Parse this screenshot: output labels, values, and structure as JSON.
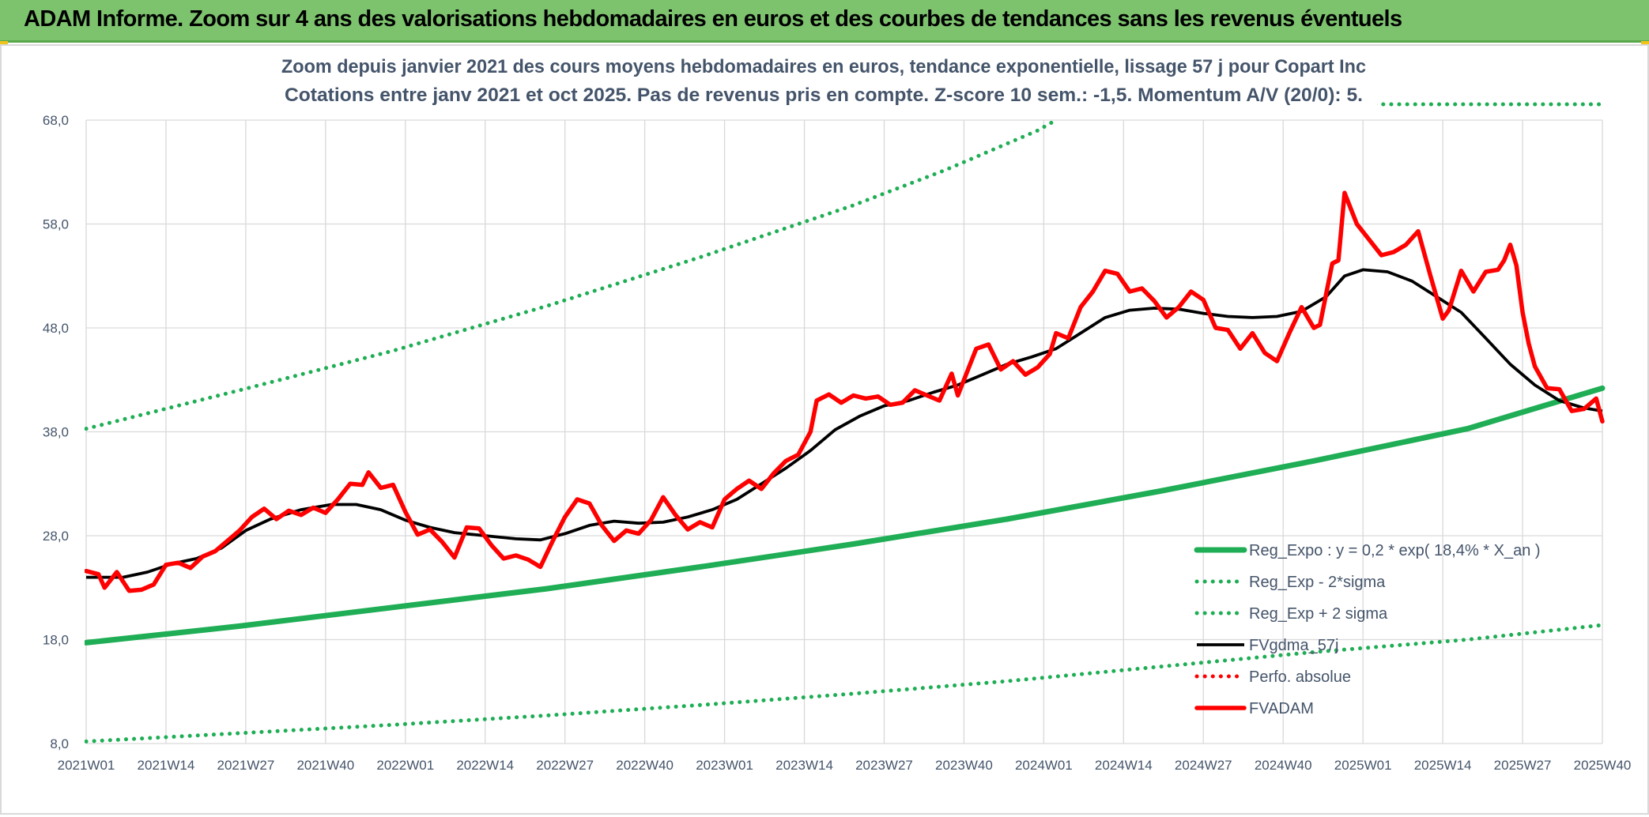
{
  "header": {
    "title": "ADAM Informe. Zoom sur 4 ans des valorisations hebdomadaires en euros et des courbes de tendances sans les revenus éventuels"
  },
  "colors": {
    "header_bg": "#7dc36e",
    "green": "#1fae55",
    "black": "#000000",
    "red": "#ff0000",
    "grid": "#d9d9d9",
    "text": "#44546a"
  },
  "chart_data": {
    "type": "line",
    "title": "Zoom depuis janvier 2021 des cours moyens hebdomadaires en euros, tendance exponentielle, lissage 57 j pour Copart Inc",
    "subtitle": "Cotations entre janv 2021 et oct 2025. Pas de revenus pris en compte. Z-score 10 sem.: -1,5. Momentum A/V (20/0): 5.",
    "xlabel": "",
    "ylabel": "",
    "ylim": [
      8,
      68
    ],
    "yticks": [
      "8,0",
      "18,0",
      "28,0",
      "38,0",
      "48,0",
      "58,0",
      "68,0"
    ],
    "grid": true,
    "legend_position": "bottom-right",
    "x_range": [
      0,
      247
    ],
    "x_ticks": [
      {
        "i": 0,
        "label": "2021W01"
      },
      {
        "i": 13,
        "label": "2021W14"
      },
      {
        "i": 26,
        "label": "2021W27"
      },
      {
        "i": 39,
        "label": "2021W40"
      },
      {
        "i": 52,
        "label": "2022W01"
      },
      {
        "i": 65,
        "label": "2022W14"
      },
      {
        "i": 78,
        "label": "2022W27"
      },
      {
        "i": 91,
        "label": "2022W40"
      },
      {
        "i": 104,
        "label": "2023W01"
      },
      {
        "i": 117,
        "label": "2023W14"
      },
      {
        "i": 130,
        "label": "2023W27"
      },
      {
        "i": 143,
        "label": "2023W40"
      },
      {
        "i": 156,
        "label": "2024W01"
      },
      {
        "i": 169,
        "label": "2024W14"
      },
      {
        "i": 182,
        "label": "2024W27"
      },
      {
        "i": 195,
        "label": "2024W40"
      },
      {
        "i": 208,
        "label": "2025W01"
      },
      {
        "i": 221,
        "label": "2025W14"
      },
      {
        "i": 234,
        "label": "2025W27"
      },
      {
        "i": 247,
        "label": "2025W40"
      }
    ],
    "series": [
      {
        "name": "Reg_Expo : y = 0,2 * exp( 18,4% *  X_an )",
        "style": "solid-thick",
        "color": "#1fae55",
        "points": [
          [
            0,
            17.7
          ],
          [
            25,
            19.3
          ],
          [
            50,
            21.1
          ],
          [
            75,
            22.9
          ],
          [
            100,
            25.0
          ],
          [
            125,
            27.2
          ],
          [
            150,
            29.6
          ],
          [
            175,
            32.3
          ],
          [
            200,
            35.2
          ],
          [
            225,
            38.3
          ],
          [
            247,
            42.2
          ]
        ]
      },
      {
        "name": "Reg_Exp - 2*sigma",
        "style": "dotted",
        "color": "#1fae55",
        "points": [
          [
            0,
            8.2
          ],
          [
            25,
            9.0
          ],
          [
            50,
            9.8
          ],
          [
            75,
            10.7
          ],
          [
            100,
            11.7
          ],
          [
            125,
            12.8
          ],
          [
            150,
            14.0
          ],
          [
            175,
            15.4
          ],
          [
            200,
            16.8
          ],
          [
            225,
            18.0
          ],
          [
            247,
            19.4
          ]
        ]
      },
      {
        "name": "Reg_Exp + 2 sigma",
        "style": "dotted",
        "color": "#1fae55",
        "points": [
          [
            0,
            38.3
          ],
          [
            25,
            42.0
          ],
          [
            50,
            45.8
          ],
          [
            75,
            50.1
          ],
          [
            100,
            54.8
          ],
          [
            125,
            59.8
          ],
          [
            140,
            63.2
          ],
          [
            155,
            67.0
          ],
          [
            158,
            68.0
          ]
        ],
        "points_upper_segment": [
          [
            210,
            69.8
          ],
          [
            247,
            69.8
          ]
        ]
      },
      {
        "name": "FVgdma_57j",
        "style": "solid",
        "color": "#000000",
        "points": [
          [
            0,
            24.0
          ],
          [
            6,
            24.0
          ],
          [
            10,
            24.5
          ],
          [
            14,
            25.3
          ],
          [
            18,
            25.8
          ],
          [
            22,
            26.8
          ],
          [
            26,
            28.5
          ],
          [
            30,
            29.6
          ],
          [
            35,
            30.5
          ],
          [
            40,
            31.0
          ],
          [
            44,
            31.0
          ],
          [
            48,
            30.5
          ],
          [
            52,
            29.5
          ],
          [
            56,
            28.8
          ],
          [
            60,
            28.3
          ],
          [
            65,
            28.0
          ],
          [
            70,
            27.7
          ],
          [
            74,
            27.6
          ],
          [
            78,
            28.2
          ],
          [
            82,
            29.0
          ],
          [
            86,
            29.4
          ],
          [
            90,
            29.2
          ],
          [
            94,
            29.3
          ],
          [
            98,
            29.8
          ],
          [
            102,
            30.5
          ],
          [
            106,
            31.5
          ],
          [
            110,
            33.0
          ],
          [
            114,
            34.5
          ],
          [
            118,
            36.2
          ],
          [
            122,
            38.2
          ],
          [
            126,
            39.5
          ],
          [
            130,
            40.5
          ],
          [
            134,
            41.0
          ],
          [
            138,
            41.8
          ],
          [
            142,
            42.5
          ],
          [
            146,
            43.5
          ],
          [
            150,
            44.5
          ],
          [
            154,
            45.2
          ],
          [
            158,
            46.0
          ],
          [
            162,
            47.5
          ],
          [
            166,
            49.0
          ],
          [
            170,
            49.7
          ],
          [
            174,
            49.9
          ],
          [
            178,
            49.8
          ],
          [
            182,
            49.4
          ],
          [
            186,
            49.1
          ],
          [
            190,
            49.0
          ],
          [
            194,
            49.1
          ],
          [
            198,
            49.6
          ],
          [
            202,
            51.0
          ],
          [
            205,
            53.0
          ],
          [
            208,
            53.6
          ],
          [
            212,
            53.4
          ],
          [
            216,
            52.5
          ],
          [
            220,
            51.0
          ],
          [
            224,
            49.5
          ],
          [
            228,
            47.0
          ],
          [
            232,
            44.5
          ],
          [
            236,
            42.5
          ],
          [
            240,
            41.0
          ],
          [
            244,
            40.3
          ],
          [
            247,
            40.0
          ]
        ]
      },
      {
        "name": "Perfo. absolue",
        "style": "dotted",
        "color": "#ff0000",
        "points": []
      },
      {
        "name": "FVADAM",
        "style": "solid-thick",
        "color": "#ff0000",
        "points": [
          [
            0,
            24.6
          ],
          [
            2,
            24.3
          ],
          [
            3,
            23.0
          ],
          [
            5,
            24.5
          ],
          [
            7,
            22.7
          ],
          [
            9,
            22.8
          ],
          [
            11,
            23.3
          ],
          [
            13,
            25.2
          ],
          [
            15,
            25.4
          ],
          [
            17,
            24.9
          ],
          [
            19,
            26.0
          ],
          [
            21,
            26.5
          ],
          [
            23,
            27.5
          ],
          [
            25,
            28.5
          ],
          [
            27,
            29.8
          ],
          [
            29,
            30.6
          ],
          [
            31,
            29.6
          ],
          [
            33,
            30.4
          ],
          [
            35,
            30.0
          ],
          [
            37,
            30.7
          ],
          [
            39,
            30.2
          ],
          [
            41,
            31.5
          ],
          [
            43,
            33.0
          ],
          [
            45,
            32.9
          ],
          [
            46,
            34.1
          ],
          [
            48,
            32.6
          ],
          [
            50,
            32.9
          ],
          [
            52,
            30.3
          ],
          [
            54,
            28.1
          ],
          [
            56,
            28.6
          ],
          [
            58,
            27.4
          ],
          [
            60,
            25.9
          ],
          [
            62,
            28.8
          ],
          [
            64,
            28.7
          ],
          [
            66,
            27.1
          ],
          [
            68,
            25.8
          ],
          [
            70,
            26.1
          ],
          [
            72,
            25.7
          ],
          [
            74,
            25.0
          ],
          [
            76,
            27.5
          ],
          [
            78,
            29.8
          ],
          [
            80,
            31.5
          ],
          [
            82,
            31.1
          ],
          [
            84,
            29.0
          ],
          [
            86,
            27.5
          ],
          [
            88,
            28.5
          ],
          [
            90,
            28.2
          ],
          [
            92,
            29.5
          ],
          [
            94,
            31.7
          ],
          [
            96,
            30.0
          ],
          [
            98,
            28.6
          ],
          [
            100,
            29.3
          ],
          [
            102,
            28.8
          ],
          [
            104,
            31.5
          ],
          [
            106,
            32.5
          ],
          [
            108,
            33.3
          ],
          [
            110,
            32.5
          ],
          [
            112,
            34.0
          ],
          [
            114,
            35.2
          ],
          [
            116,
            35.8
          ],
          [
            118,
            38.0
          ],
          [
            119,
            41.0
          ],
          [
            121,
            41.6
          ],
          [
            123,
            40.8
          ],
          [
            125,
            41.5
          ],
          [
            127,
            41.2
          ],
          [
            129,
            41.4
          ],
          [
            131,
            40.6
          ],
          [
            133,
            40.8
          ],
          [
            135,
            42.0
          ],
          [
            137,
            41.5
          ],
          [
            139,
            41.0
          ],
          [
            141,
            43.6
          ],
          [
            142,
            41.5
          ],
          [
            144,
            44.5
          ],
          [
            145,
            46.0
          ],
          [
            147,
            46.4
          ],
          [
            149,
            44.0
          ],
          [
            151,
            44.8
          ],
          [
            153,
            43.5
          ],
          [
            155,
            44.2
          ],
          [
            157,
            45.5
          ],
          [
            158,
            47.5
          ],
          [
            160,
            47.0
          ],
          [
            162,
            50.0
          ],
          [
            164,
            51.5
          ],
          [
            166,
            53.5
          ],
          [
            168,
            53.2
          ],
          [
            170,
            51.5
          ],
          [
            172,
            51.8
          ],
          [
            174,
            50.6
          ],
          [
            176,
            49.0
          ],
          [
            178,
            50.0
          ],
          [
            180,
            51.5
          ],
          [
            182,
            50.7
          ],
          [
            184,
            48.0
          ],
          [
            186,
            47.8
          ],
          [
            188,
            46.0
          ],
          [
            190,
            47.5
          ],
          [
            192,
            45.6
          ],
          [
            194,
            44.8
          ],
          [
            196,
            47.5
          ],
          [
            198,
            50.0
          ],
          [
            200,
            48.0
          ],
          [
            201,
            48.3
          ],
          [
            203,
            54.2
          ],
          [
            204,
            54.5
          ],
          [
            205,
            61.0
          ],
          [
            207,
            58.0
          ],
          [
            209,
            56.5
          ],
          [
            211,
            55.0
          ],
          [
            213,
            55.3
          ],
          [
            215,
            56.0
          ],
          [
            217,
            57.3
          ],
          [
            219,
            53.0
          ],
          [
            221,
            48.9
          ],
          [
            222,
            49.7
          ],
          [
            224,
            53.5
          ],
          [
            226,
            51.5
          ],
          [
            228,
            53.4
          ],
          [
            230,
            53.6
          ],
          [
            231,
            54.5
          ],
          [
            232,
            56.0
          ],
          [
            233,
            54.0
          ],
          [
            234,
            49.5
          ],
          [
            235,
            46.5
          ],
          [
            236,
            44.3
          ],
          [
            238,
            42.2
          ],
          [
            240,
            42.1
          ],
          [
            242,
            40.0
          ],
          [
            244,
            40.2
          ],
          [
            246,
            41.2
          ],
          [
            247,
            39.0
          ]
        ]
      }
    ]
  }
}
